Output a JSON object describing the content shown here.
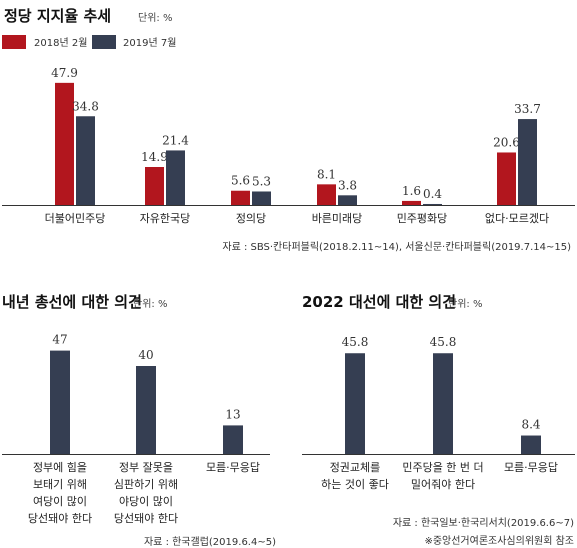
{
  "chart_data": [
    {
      "type": "bar",
      "title": "정당 지지율 추세",
      "unit": "단위: %",
      "categories": [
        "더불어민주당",
        "자유한국당",
        "정의당",
        "바른미래당",
        "민주평화당",
        "없다·모르겠다"
      ],
      "series": [
        {
          "name": "2018년 2월",
          "values": [
            47.9,
            14.9,
            5.6,
            8.1,
            1.6,
            20.6
          ]
        },
        {
          "name": "2019년 7월",
          "values": [
            34.8,
            21.4,
            5.3,
            3.8,
            0.4,
            33.7
          ]
        }
      ],
      "ylim": [
        0,
        50
      ],
      "grid": false,
      "legend": "top-left",
      "source": "자료 : SBS·칸타퍼블릭(2018.2.11~14), 서울신문·칸타퍼블릭(2019.7.14~15)"
    },
    {
      "type": "bar",
      "title": "내년 총선에 대한 의견",
      "unit": "단위: %",
      "categories": [
        [
          "정부에 힘을",
          "보태기 위해",
          "여당이 많이",
          "당선돼야 한다"
        ],
        [
          "정부 잘못을",
          "심판하기 위해",
          "야당이 많이",
          "당선돼야 한다"
        ],
        [
          "모름·무응답"
        ]
      ],
      "values": [
        47,
        40,
        13
      ],
      "ylim": [
        0,
        50
      ],
      "grid": false,
      "source": "자료 : 한국갤럽(2019.6.4~5)"
    },
    {
      "type": "bar",
      "title": "2022 대선에 대한 의견",
      "unit": "단위: %",
      "categories": [
        [
          "정권교체를",
          "하는 것이 좋다"
        ],
        [
          "민주당을 한 번 더",
          "밀어줘야 한다"
        ],
        [
          "모름·무응답"
        ]
      ],
      "values": [
        45.8,
        45.8,
        8.4
      ],
      "ylim": [
        0,
        50
      ],
      "grid": false,
      "source": "자료 : 한국일보·한국리서치(2019.6.6~7)",
      "note": "※중앙선거여론조사심의위원회 참조"
    }
  ],
  "colors": {
    "red": "#b2161e",
    "navy": "#353e52",
    "axis": "#333333"
  }
}
